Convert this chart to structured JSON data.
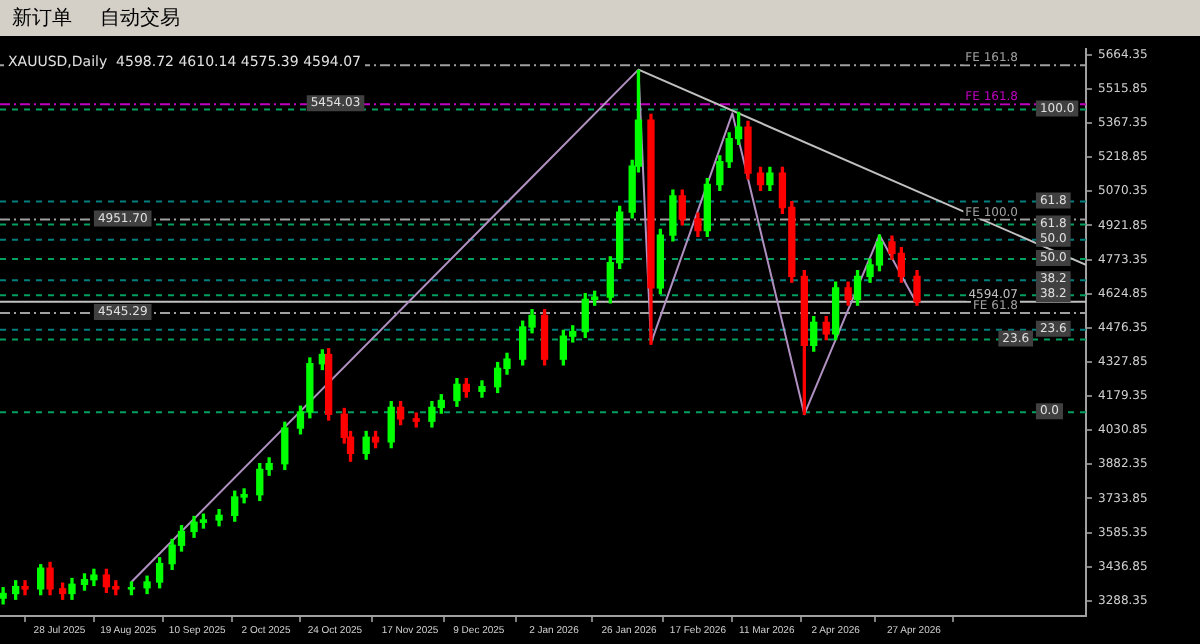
{
  "chart_data": {
    "type": "candlestick",
    "title": "XAUUSD,Daily  4598.72 4610.14 4575.39 4594.07",
    "x": [
      "2025-07-10",
      "2025-07-14",
      "2025-07-17",
      "2025-07-22",
      "2025-07-25",
      "2025-07-29",
      "2025-08-01",
      "2025-08-05",
      "2025-08-08",
      "2025-08-12",
      "2025-08-15",
      "2025-08-20",
      "2025-08-25",
      "2025-08-29",
      "2025-09-02",
      "2025-09-05",
      "2025-09-09",
      "2025-09-12",
      "2025-09-17",
      "2025-09-22",
      "2025-09-25",
      "2025-09-30",
      "2025-10-03",
      "2025-10-08",
      "2025-10-13",
      "2025-10-16",
      "2025-10-20",
      "2025-10-22",
      "2025-10-27",
      "2025-10-29",
      "2025-11-03",
      "2025-11-06",
      "2025-11-11",
      "2025-11-14",
      "2025-11-19",
      "2025-11-24",
      "2025-11-27",
      "2025-12-02",
      "2025-12-05",
      "2025-12-10",
      "2025-12-15",
      "2025-12-18",
      "2025-12-23",
      "2025-12-26",
      "2025-12-30",
      "2026-01-05",
      "2026-01-08",
      "2026-01-12",
      "2026-01-15",
      "2026-01-20",
      "2026-01-23",
      "2026-01-27",
      "2026-01-29",
      "2026-02-02",
      "2026-02-05",
      "2026-02-09",
      "2026-02-12",
      "2026-02-17",
      "2026-02-20",
      "2026-02-24",
      "2026-02-27",
      "2026-03-02",
      "2026-03-05",
      "2026-03-09",
      "2026-03-12",
      "2026-03-16",
      "2026-03-19",
      "2026-03-23",
      "2026-03-26",
      "2026-03-30",
      "2026-04-02",
      "2026-04-06",
      "2026-04-09",
      "2026-04-13",
      "2026-04-16",
      "2026-04-20",
      "2026-04-23",
      "2026-04-28"
    ],
    "ohlc": [
      [
        3300,
        3345,
        3275,
        3320
      ],
      [
        3320,
        3375,
        3295,
        3350
      ],
      [
        3350,
        3375,
        3315,
        3340
      ],
      [
        3340,
        3445,
        3315,
        3430
      ],
      [
        3430,
        3455,
        3315,
        3340
      ],
      [
        3340,
        3365,
        3295,
        3320
      ],
      [
        3320,
        3385,
        3295,
        3360
      ],
      [
        3360,
        3405,
        3335,
        3380
      ],
      [
        3380,
        3425,
        3355,
        3400
      ],
      [
        3400,
        3425,
        3325,
        3350
      ],
      [
        3350,
        3375,
        3315,
        3340
      ],
      [
        3340,
        3370,
        3315,
        3345
      ],
      [
        3345,
        3395,
        3320,
        3370
      ],
      [
        3370,
        3475,
        3345,
        3450
      ],
      [
        3450,
        3555,
        3425,
        3530
      ],
      [
        3530,
        3615,
        3505,
        3590
      ],
      [
        3590,
        3655,
        3565,
        3630
      ],
      [
        3630,
        3665,
        3605,
        3640
      ],
      [
        3640,
        3685,
        3615,
        3660
      ],
      [
        3660,
        3765,
        3635,
        3740
      ],
      [
        3740,
        3775,
        3715,
        3750
      ],
      [
        3750,
        3885,
        3725,
        3860
      ],
      [
        3860,
        3910,
        3835,
        3885
      ],
      [
        3885,
        4065,
        3860,
        4040
      ],
      [
        4040,
        4135,
        4015,
        4110
      ],
      [
        4110,
        4345,
        4085,
        4320
      ],
      [
        4320,
        4380,
        4295,
        4360
      ],
      [
        4360,
        4385,
        4075,
        4100
      ],
      [
        4100,
        4125,
        3975,
        4000
      ],
      [
        4000,
        4025,
        3896,
        3930
      ],
      [
        3930,
        4025,
        3905,
        4000
      ],
      [
        4000,
        4025,
        3955,
        3980
      ],
      [
        3980,
        4155,
        3955,
        4130
      ],
      [
        4130,
        4155,
        4055,
        4080
      ],
      [
        4080,
        4105,
        4045,
        4070
      ],
      [
        4070,
        4155,
        4045,
        4130
      ],
      [
        4130,
        4185,
        4105,
        4160
      ],
      [
        4160,
        4255,
        4135,
        4230
      ],
      [
        4230,
        4255,
        4175,
        4200
      ],
      [
        4200,
        4245,
        4175,
        4220
      ],
      [
        4220,
        4325,
        4195,
        4300
      ],
      [
        4300,
        4365,
        4275,
        4340
      ],
      [
        4340,
        4505,
        4315,
        4480
      ],
      [
        4480,
        4555,
        4455,
        4530
      ],
      [
        4530,
        4555,
        4315,
        4340
      ],
      [
        4340,
        4465,
        4315,
        4440
      ],
      [
        4440,
        4485,
        4415,
        4460
      ],
      [
        4460,
        4625,
        4435,
        4600
      ],
      [
        4600,
        4635,
        4575,
        4610
      ],
      [
        4610,
        4785,
        4585,
        4760
      ],
      [
        4760,
        5005,
        4735,
        4980
      ],
      [
        4980,
        5205,
        4955,
        5180
      ],
      [
        5180,
        5597,
        5155,
        5380
      ],
      [
        5380,
        5405,
        4405,
        4650
      ],
      [
        4650,
        4905,
        4625,
        4880
      ],
      [
        4880,
        5075,
        4855,
        5050
      ],
      [
        5050,
        5075,
        4925,
        4950
      ],
      [
        4950,
        4975,
        4875,
        4900
      ],
      [
        4900,
        5125,
        4875,
        5100
      ],
      [
        5100,
        5225,
        5075,
        5200
      ],
      [
        5200,
        5325,
        5175,
        5300
      ],
      [
        5300,
        5414,
        5275,
        5350
      ],
      [
        5350,
        5375,
        5125,
        5150
      ],
      [
        5150,
        5175,
        5075,
        5100
      ],
      [
        5100,
        5175,
        5075,
        5150
      ],
      [
        5150,
        5175,
        4975,
        5000
      ],
      [
        5000,
        5025,
        4675,
        4700
      ],
      [
        4700,
        4725,
        4100,
        4400
      ],
      [
        4400,
        4525,
        4375,
        4500
      ],
      [
        4500,
        4525,
        4425,
        4450
      ],
      [
        4450,
        4675,
        4425,
        4650
      ],
      [
        4650,
        4675,
        4575,
        4600
      ],
      [
        4600,
        4725,
        4575,
        4700
      ],
      [
        4700,
        4775,
        4675,
        4750
      ],
      [
        4750,
        4880,
        4725,
        4850
      ],
      [
        4850,
        4875,
        4775,
        4800
      ],
      [
        4800,
        4825,
        4675,
        4700
      ],
      [
        4700,
        4725,
        4575,
        4590
      ]
    ],
    "colors": [
      "#00ff00",
      "#00ff00",
      "#ff0000",
      "#00ff00",
      "#ff0000",
      "#ff0000",
      "#00ff00",
      "#00ff00",
      "#00ff00",
      "#ff0000",
      "#ff0000",
      "#00ff00",
      "#00ff00",
      "#00ff00",
      "#00ff00",
      "#00ff00",
      "#00ff00",
      "#00ff00",
      "#00ff00",
      "#00ff00",
      "#00ff00",
      "#00ff00",
      "#00ff00",
      "#00ff00",
      "#00ff00",
      "#00ff00",
      "#00ff00",
      "#ff0000",
      "#ff0000",
      "#ff0000",
      "#00ff00",
      "#ff0000",
      "#00ff00",
      "#ff0000",
      "#ff0000",
      "#00ff00",
      "#00ff00",
      "#00ff00",
      "#ff0000",
      "#00ff00",
      "#00ff00",
      "#00ff00",
      "#00ff00",
      "#00ff00",
      "#ff0000",
      "#00ff00",
      "#00ff00",
      "#00ff00",
      "#00ff00",
      "#00ff00",
      "#00ff00",
      "#00ff00",
      "#00ff00",
      "#ff0000",
      "#00ff00",
      "#00ff00",
      "#ff0000",
      "#ff0000",
      "#00ff00",
      "#00ff00",
      "#00ff00",
      "#00ff00",
      "#ff0000",
      "#ff0000",
      "#00ff00",
      "#ff0000",
      "#ff0000",
      "#ff0000",
      "#00ff00",
      "#ff0000",
      "#00ff00",
      "#ff0000",
      "#00ff00",
      "#00ff00",
      "#00ff00",
      "#ff0000",
      "#ff0000",
      "#ff0000"
    ],
    "series": [
      {
        "type": "line",
        "color": "#b090c0",
        "x": [
          "2025-08-20",
          "2026-01-29",
          "2026-02-02",
          "2026-02-28",
          "2026-03-23",
          "2026-04-16",
          "2026-04-28"
        ],
        "values": [
          3370,
          5600,
          4410,
          5410,
          4100,
          4880,
          4580
        ]
      },
      {
        "type": "line",
        "color": "#c0c0c0",
        "x": [
          "2026-01-29",
          "2026-06-21"
        ],
        "values": [
          5600,
          4750
        ]
      }
    ],
    "xlim": [
      "2025-07-09",
      "2026-06-21"
    ],
    "xticks": [
      {
        "value": "2025-07-28",
        "label": "28 Jul 2025"
      },
      {
        "value": "2025-08-19",
        "label": "19 Aug 2025"
      },
      {
        "value": "2025-09-10",
        "label": "10 Sep 2025"
      },
      {
        "value": "2025-10-02",
        "label": "2 Oct 2025"
      },
      {
        "value": "2025-10-24",
        "label": "24 Oct 2025"
      },
      {
        "value": "2025-11-17",
        "label": "17 Nov 2025"
      },
      {
        "value": "2025-12-09",
        "label": "9 Dec 2025"
      },
      {
        "value": "2026-01-02",
        "label": "2 Jan 2026"
      },
      {
        "value": "2026-01-26",
        "label": "26 Jan 2026"
      },
      {
        "value": "2026-02-17",
        "label": "17 Feb 2026"
      },
      {
        "value": "2026-03-11",
        "label": "11 Mar 2026"
      },
      {
        "value": "2026-04-02",
        "label": "2 Apr 2026"
      },
      {
        "value": "2026-04-27",
        "label": "27 Apr 2026"
      }
    ],
    "ylim": [
      3222,
      5689
    ],
    "yticks": [
      3288.35,
      3436.85,
      3585.35,
      3733.85,
      3882.35,
      4030.85,
      4179.35,
      4327.85,
      4476.35,
      4624.85,
      4773.35,
      4921.85,
      5070.35,
      5218.85,
      5367.35,
      5515.85,
      5664.35
    ],
    "ref_lines": [
      {
        "axis": "y",
        "value": 5623,
        "label": "FE 161.8",
        "color": "#a0a0a0",
        "line_style": "dashdot"
      },
      {
        "axis": "y",
        "value": 5454.03,
        "label": "FE 161.8",
        "color": "#c000c0",
        "line_style": "dashdot"
      },
      {
        "axis": "y",
        "value": 5431,
        "color": "#00a060",
        "line_style": "dashed"
      },
      {
        "axis": "y",
        "value": 5031,
        "color": "#008080",
        "line_style": "dashed"
      },
      {
        "axis": "y",
        "value": 4951.7,
        "label": "FE 100.0",
        "color": "#a0a0a0",
        "line_style": "dashdot"
      },
      {
        "axis": "y",
        "value": 4930,
        "color": "#00a060",
        "line_style": "dashed"
      },
      {
        "axis": "y",
        "value": 4864,
        "color": "#008080",
        "line_style": "dashed"
      },
      {
        "axis": "y",
        "value": 4780,
        "color": "#00a060",
        "line_style": "dashed"
      },
      {
        "axis": "y",
        "value": 4688,
        "color": "#008080",
        "line_style": "dashed"
      },
      {
        "axis": "y",
        "value": 4622,
        "color": "#00a060",
        "line_style": "dashed"
      },
      {
        "axis": "y",
        "value": 4594.07,
        "label": "4594.07",
        "color": "#c0c0c0",
        "line_style": "solid"
      },
      {
        "axis": "y",
        "value": 4545.29,
        "label": "FE 61.8",
        "color": "#a0a0a0",
        "line_style": "dashdot"
      },
      {
        "axis": "y",
        "value": 4472,
        "color": "#008080",
        "line_style": "dashed"
      },
      {
        "axis": "y",
        "value": 4430,
        "color": "#00a060",
        "line_style": "dashed"
      },
      {
        "axis": "y",
        "value": 4113,
        "color": "#00a060",
        "line_style": "dashed"
      }
    ],
    "annotations": [
      "新订单",
      "自动交易",
      {
        "text": "5454.03",
        "x": "2025-10-15",
        "y": 5454.03
      },
      {
        "text": "4951.70",
        "x": "2025-08-08",
        "y": 4951.7
      },
      {
        "text": "4545.29",
        "x": "2025-08-08",
        "y": 4545.29
      },
      {
        "text": "100.0",
        "x": "2026-06-05",
        "y": 5431
      },
      {
        "text": "61.8",
        "x": "2026-06-05",
        "y": 5031
      },
      {
        "text": "61.8",
        "x": "2026-06-05",
        "y": 4930
      },
      {
        "text": "50.0",
        "x": "2026-06-05",
        "y": 4864
      },
      {
        "text": "50.0",
        "x": "2026-06-05",
        "y": 4780
      },
      {
        "text": "38.2",
        "x": "2026-06-05",
        "y": 4688
      },
      {
        "text": "38.2",
        "x": "2026-06-05",
        "y": 4622
      },
      {
        "text": "23.6",
        "x": "2026-06-05",
        "y": 4472
      },
      {
        "text": "23.6",
        "x": "2026-05-24",
        "y": 4430
      },
      {
        "text": "0.0",
        "x": "2026-06-05",
        "y": 4113
      }
    ],
    "grid": false,
    "legend": false,
    "marker": "none"
  }
}
